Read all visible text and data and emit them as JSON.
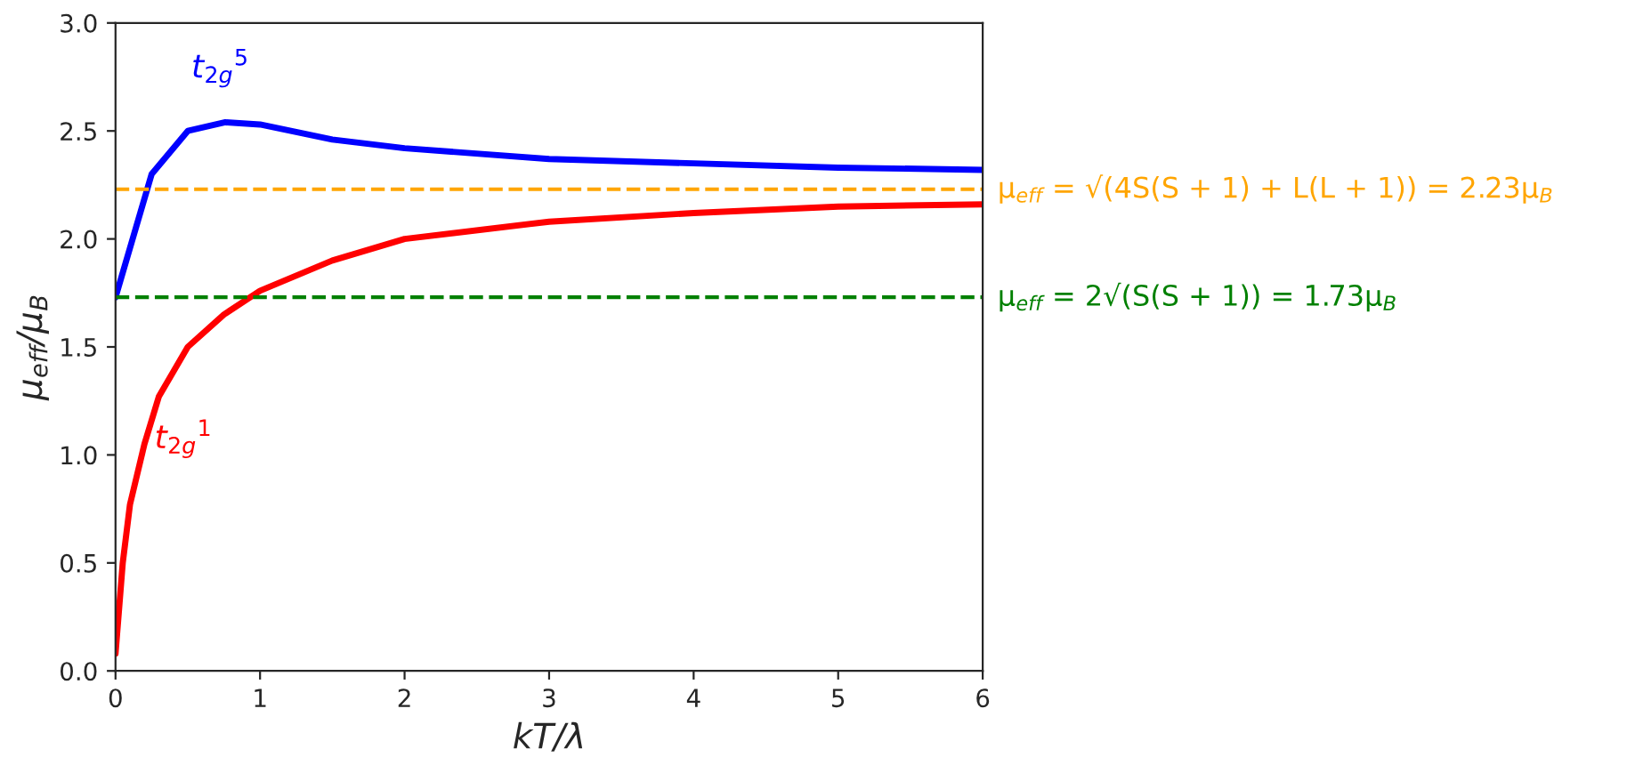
{
  "chart_data": {
    "type": "line",
    "xlabel": "kT/λ",
    "ylabel": "μ$_{eff}$/μ$_{B}$",
    "xlim": [
      0,
      6
    ],
    "ylim": [
      0,
      3.0
    ],
    "xticks": [
      0,
      1,
      2,
      3,
      4,
      5,
      6
    ],
    "yticks": [
      {
        "value": 0,
        "label": "0.0"
      },
      0.5,
      {
        "value": 1,
        "label": "1.0"
      },
      1.5,
      {
        "value": 2,
        "label": "2.0"
      },
      2.5,
      {
        "value": 3,
        "label": "3.0"
      }
    ],
    "grid": false,
    "legend": false,
    "line_style": "solid",
    "marker": "none",
    "series": [
      {
        "name": "t$_{2g}$$^{5}$",
        "color": "#0000ff",
        "x": [
          0,
          0.25,
          0.5,
          0.76,
          1,
          1.5,
          2,
          3,
          4,
          5,
          6
        ],
        "values": [
          1.73,
          2.3,
          2.5,
          2.54,
          2.53,
          2.46,
          2.42,
          2.37,
          2.35,
          2.33,
          2.32
        ]
      },
      {
        "name": "t$_{2g}$$^{1}$",
        "color": "#ff0000",
        "x": [
          0,
          0.05,
          0.1,
          0.2,
          0.3,
          0.5,
          0.75,
          1,
          1.5,
          2,
          3,
          4,
          5,
          6
        ],
        "values": [
          0.08,
          0.5,
          0.77,
          1.05,
          1.27,
          1.5,
          1.65,
          1.76,
          1.9,
          2.0,
          2.08,
          2.12,
          2.15,
          2.16
        ]
      }
    ],
    "ref_lines": [
      {
        "axis": "y",
        "value": 2.23,
        "color": "#ffa500",
        "line_style": "dashed",
        "label": "μ$_{eff}$ = √(4S(S + 1) + L(L + 1)) = 2.23μ$_{B}$"
      },
      {
        "axis": "y",
        "value": 1.73,
        "color": "#008000",
        "line_style": "dashed",
        "label": "μ$_{eff}$ = 2√(S(S + 1)) = 1.73μ$_{B}$"
      }
    ]
  }
}
